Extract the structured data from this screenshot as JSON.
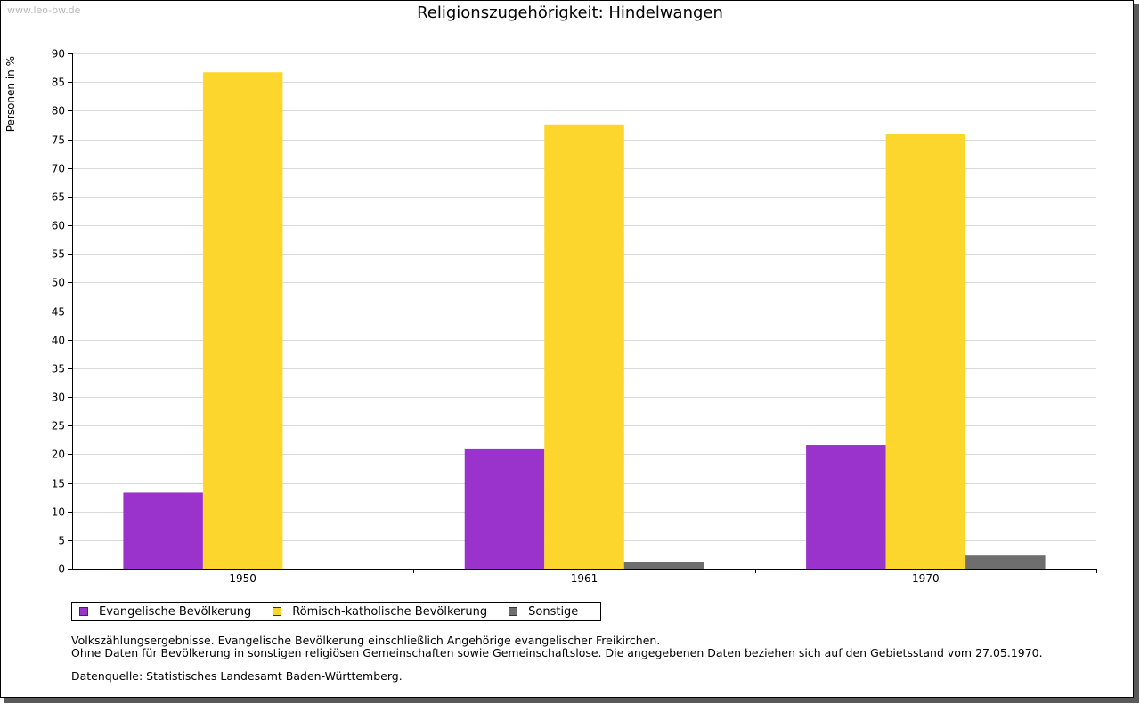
{
  "watermark": "www.leo-bw.de",
  "chart_data": {
    "type": "bar",
    "title": "Religionszugehörigkeit: Hindelwangen",
    "xlabel": "",
    "ylabel": "Personen in %",
    "ylim": [
      0,
      90
    ],
    "yticks": [
      0,
      5,
      10,
      15,
      20,
      25,
      30,
      35,
      40,
      45,
      50,
      55,
      60,
      65,
      70,
      75,
      80,
      85,
      90
    ],
    "categories": [
      "1950",
      "1961",
      "1970"
    ],
    "series": [
      {
        "name": "Evangelische Bevölkerung",
        "color": "#9933cc",
        "values": [
          13.3,
          21.0,
          21.6
        ]
      },
      {
        "name": "Römisch-katholische Bevölkerung",
        "color": "#fcd62c",
        "values": [
          86.7,
          77.6,
          76.0
        ]
      },
      {
        "name": "Sonstige",
        "color": "#6e6e6e",
        "values": [
          0,
          1.2,
          2.3
        ]
      }
    ],
    "grid": true,
    "legend_position": "bottom-left"
  },
  "notes": {
    "line1": "Volkszählungsergebnisse. Evangelische Bevölkerung einschließlich Angehörige evangelischer Freikirchen.",
    "line2": "Ohne Daten für Bevölkerung in sonstigen religiösen Gemeinschaften sowie Gemeinschaftslose. Die angegebenen Daten beziehen sich auf den Gebietsstand vom 27.05.1970.",
    "source": "Datenquelle: Statistisches Landesamt Baden-Württemberg."
  }
}
